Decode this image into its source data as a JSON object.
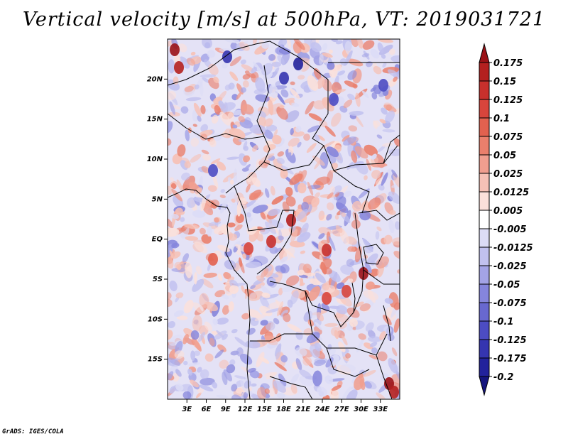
{
  "title": "Vertical velocity [m/s] at 500hPa, VT: 2019031721",
  "credit": "GrADS: IGES/COLA",
  "map": {
    "lon_range": [
      0,
      36
    ],
    "lat_range": [
      -20,
      25
    ],
    "x_ticks": [
      {
        "label": "3E",
        "lon": 3
      },
      {
        "label": "6E",
        "lon": 6
      },
      {
        "label": "9E",
        "lon": 9
      },
      {
        "label": "12E",
        "lon": 12
      },
      {
        "label": "15E",
        "lon": 15
      },
      {
        "label": "18E",
        "lon": 18
      },
      {
        "label": "21E",
        "lon": 21
      },
      {
        "label": "24E",
        "lon": 24
      },
      {
        "label": "27E",
        "lon": 27
      },
      {
        "label": "30E",
        "lon": 30
      },
      {
        "label": "33E",
        "lon": 33
      }
    ],
    "y_ticks": [
      {
        "label": "20N",
        "lat": 20
      },
      {
        "label": "15N",
        "lat": 15
      },
      {
        "label": "10N",
        "lat": 10
      },
      {
        "label": "5N",
        "lat": 5
      },
      {
        "label": "EQ",
        "lat": 0
      },
      {
        "label": "5S",
        "lat": -5
      },
      {
        "label": "10S",
        "lat": -10
      },
      {
        "label": "15S",
        "lat": -15
      }
    ]
  },
  "colorbar": {
    "levels": [
      "0.175",
      "0.15",
      "0.125",
      "0.1",
      "0.075",
      "0.05",
      "0.025",
      "0.0125",
      "0.005",
      "-0.005",
      "-0.0125",
      "-0.025",
      "-0.05",
      "-0.075",
      "-0.1",
      "-0.125",
      "-0.175",
      "-0.2"
    ],
    "colors": [
      "#9b1216",
      "#b4201f",
      "#c8302c",
      "#d8453c",
      "#e2614f",
      "#ea7f6c",
      "#f09e8f",
      "#f6c1b6",
      "#fbe0da",
      "#ffffff",
      "#dcdcf6",
      "#c1c1ef",
      "#a3a3e6",
      "#8585dc",
      "#6868d0",
      "#4c4cc3",
      "#3535b0",
      "#22229c",
      "#15157e"
    ]
  }
}
